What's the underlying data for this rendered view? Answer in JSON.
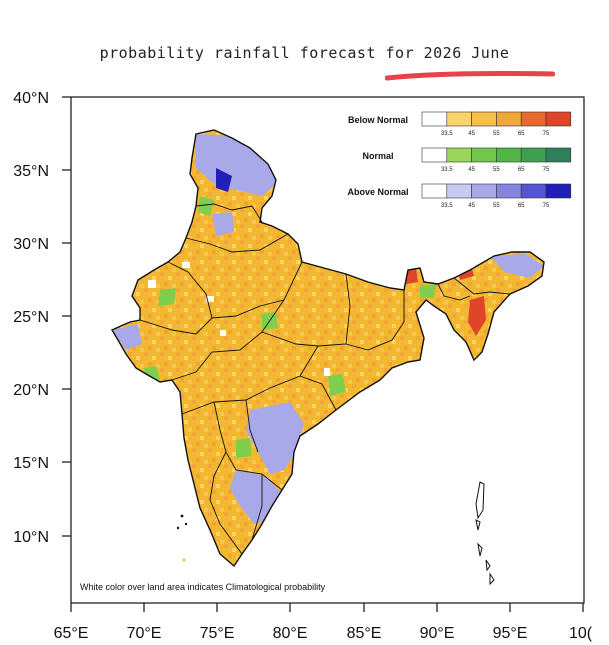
{
  "title": "probability rainfall forecast for 2026 June",
  "colors": {
    "below_normal": [
      "#ffffff",
      "#f7d36a",
      "#f4c04a",
      "#f1a83a",
      "#e76a2c",
      "#e0452a"
    ],
    "normal": [
      "#ffffff",
      "#9ad65a",
      "#6fc84c",
      "#52b548",
      "#3f9e52",
      "#2f7f5a"
    ],
    "above_normal": [
      "#ffffff",
      "#c9c9f2",
      "#a9a9ea",
      "#8585e0",
      "#5555d4",
      "#2020b8"
    ],
    "land_dominant": "#f3b830",
    "underline": "#e8434b"
  },
  "legend": [
    {
      "title": "Below Normal",
      "ticks": [
        "33.5",
        "45",
        "55",
        "65",
        "75"
      ]
    },
    {
      "title": "Normal",
      "ticks": [
        "33.5",
        "45",
        "55",
        "65",
        "75"
      ]
    },
    {
      "title": "Above Normal",
      "ticks": [
        "33.5",
        "45",
        "55",
        "65",
        "75"
      ]
    }
  ],
  "axes": {
    "lat_labels": [
      "40°N",
      "35°N",
      "30°N",
      "25°N",
      "20°N",
      "15°N",
      "10°N"
    ],
    "lon_labels": [
      "65°E",
      "70°E",
      "75°E",
      "80°E",
      "85°E",
      "90°E",
      "95°E",
      "10("
    ]
  },
  "footnote": "White color over land area indicates Climatological probability"
}
